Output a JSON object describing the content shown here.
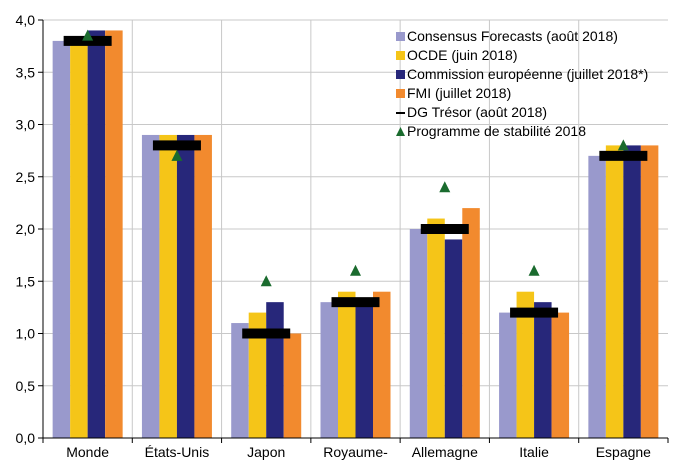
{
  "chart_data": {
    "type": "bar",
    "categories": [
      "Monde",
      "États-Unis",
      "Japon",
      "Royaume-",
      "Allemagne",
      "Italie",
      "Espagne"
    ],
    "ylim": [
      0,
      4
    ],
    "yticks": [
      "0,0",
      "0,5",
      "1,0",
      "1,5",
      "2,0",
      "2,5",
      "3,0",
      "3,5",
      "4,0"
    ],
    "grid": true,
    "legend_position": "top-right",
    "series": [
      {
        "name": "Consensus Forecasts (août 2018)",
        "mark": "bar",
        "color": "#9999cc",
        "values": [
          3.8,
          2.9,
          1.1,
          1.3,
          2.0,
          1.2,
          2.7
        ]
      },
      {
        "name": "OCDE (juin 2018)",
        "mark": "bar",
        "color": "#f5c518",
        "values": [
          3.8,
          2.9,
          1.2,
          1.4,
          2.1,
          1.4,
          2.8
        ]
      },
      {
        "name": "Commission européenne (juillet 2018*)",
        "mark": "bar",
        "color": "#27277a",
        "values": [
          3.9,
          2.9,
          1.3,
          1.3,
          1.9,
          1.3,
          2.8
        ]
      },
      {
        "name": "FMI (juillet 2018)",
        "mark": "bar",
        "color": "#f28a2e",
        "values": [
          3.9,
          2.9,
          1.0,
          1.4,
          2.2,
          1.2,
          2.8
        ]
      },
      {
        "name": "DG Trésor (août 2018)",
        "mark": "dash",
        "color": "#000000",
        "values": [
          3.8,
          2.8,
          1.0,
          1.3,
          2.0,
          1.2,
          2.7
        ]
      },
      {
        "name": "Programme de stabilité 2018",
        "mark": "triangle",
        "color": "#1a6b2e",
        "values": [
          3.85,
          2.7,
          1.5,
          1.6,
          2.4,
          1.6,
          2.8
        ]
      }
    ]
  }
}
